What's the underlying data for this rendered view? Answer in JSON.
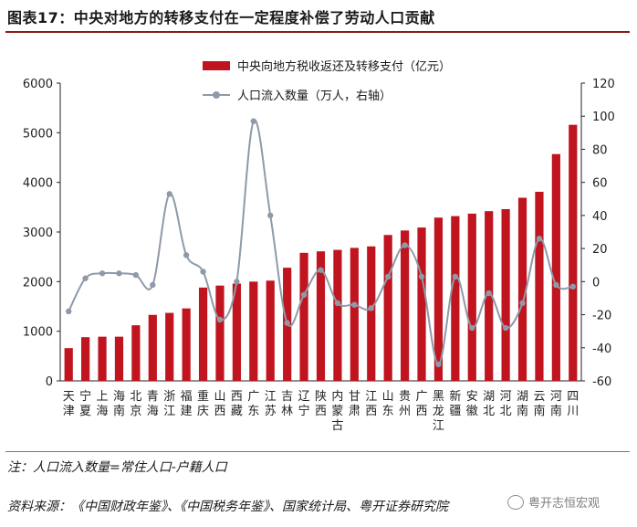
{
  "figure": {
    "title": "图表17：中央对地方的转移支付在一定程度补偿了劳动人口贡献",
    "note": "注：人口流入数量=常住人口-户籍人口",
    "source": "资料来源：《中国财政年鉴》、《中国税务年鉴》、国家统计局、粤开证券研究院",
    "watermark": "粤开志恒宏观"
  },
  "colors": {
    "bar": "#c0151f",
    "line": "#8e9aa9",
    "title_rule": "#8b1a1a"
  },
  "chart_data": {
    "type": "bar",
    "categories": [
      "天津",
      "宁夏",
      "上海",
      "海南",
      "北京",
      "青海",
      "浙江",
      "福建",
      "重庆",
      "山西",
      "西藏",
      "广东",
      "江苏",
      "吉林",
      "辽宁",
      "陕西",
      "内蒙古",
      "甘肃",
      "江西",
      "山东",
      "贵州",
      "广西",
      "黑龙江",
      "新疆",
      "安徽",
      "湖北",
      "河北",
      "湖南",
      "云南",
      "河南",
      "四川"
    ],
    "category_label_lines": [
      [
        "天",
        "津"
      ],
      [
        "宁",
        "夏"
      ],
      [
        "上",
        "海"
      ],
      [
        "海",
        "南"
      ],
      [
        "北",
        "京"
      ],
      [
        "青",
        "海"
      ],
      [
        "浙",
        "江"
      ],
      [
        "福",
        "建"
      ],
      [
        "重",
        "庆"
      ],
      [
        "山",
        "西"
      ],
      [
        "西",
        "藏"
      ],
      [
        "广",
        "东"
      ],
      [
        "江",
        "苏"
      ],
      [
        "吉",
        "林"
      ],
      [
        "辽",
        "宁"
      ],
      [
        "陕",
        "西"
      ],
      [
        "内",
        "蒙",
        "古"
      ],
      [
        "甘",
        "肃"
      ],
      [
        "江",
        "西"
      ],
      [
        "山",
        "东"
      ],
      [
        "贵",
        "州"
      ],
      [
        "广",
        "西"
      ],
      [
        "黑",
        "龙",
        "江"
      ],
      [
        "新",
        "疆"
      ],
      [
        "安",
        "徽"
      ],
      [
        "湖",
        "北"
      ],
      [
        "河",
        "北"
      ],
      [
        "湖",
        "南"
      ],
      [
        "云",
        "南"
      ],
      [
        "河",
        "南"
      ],
      [
        "四",
        "川"
      ]
    ],
    "series": [
      {
        "name": "中央向地方税收返还及转移支付（亿元）",
        "type": "bar",
        "axis": "left",
        "values": [
          660,
          880,
          890,
          890,
          1120,
          1330,
          1370,
          1460,
          1880,
          1920,
          1960,
          2000,
          2020,
          2280,
          2580,
          2610,
          2640,
          2680,
          2710,
          2940,
          3030,
          3090,
          3290,
          3320,
          3370,
          3420,
          3460,
          3690,
          3810,
          4570,
          5160
        ]
      },
      {
        "name": "人口流入数量（万人，右轴）",
        "type": "line",
        "axis": "right",
        "values": [
          -18,
          2,
          5,
          5,
          4,
          -2,
          53,
          16,
          6,
          -23,
          0,
          97,
          40,
          -25,
          -8,
          7,
          -13,
          -14,
          -16,
          3,
          22,
          3,
          -50,
          3,
          -28,
          -7,
          -28,
          -13,
          26,
          -2,
          -3
        ]
      }
    ],
    "y_left": {
      "min": 0,
      "max": 6000,
      "ticks": [
        0,
        1000,
        2000,
        3000,
        4000,
        5000,
        6000
      ]
    },
    "y_right": {
      "min": -60,
      "max": 120,
      "ticks": [
        -60,
        -40,
        -20,
        0,
        20,
        40,
        60,
        80,
        100,
        120
      ]
    },
    "legend_position": "top-center",
    "grid": false
  }
}
